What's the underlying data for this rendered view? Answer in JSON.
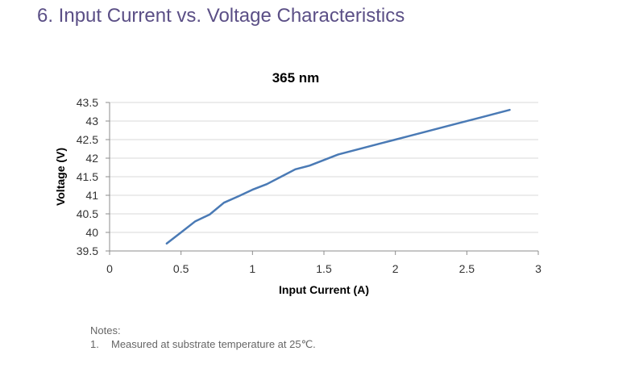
{
  "page": {
    "section_title": "6. Input Current vs. Voltage Characteristics",
    "notes_heading": "Notes:",
    "notes": [
      {
        "number": "1.",
        "text": "Measured at substrate temperature at 25℃."
      }
    ]
  },
  "colors": {
    "title": "#5b4f86",
    "series": "#4a7ab5",
    "grid": "#d9d9d9",
    "axis": "#8c8c8c",
    "notes": "#666666"
  },
  "chart_data": {
    "type": "line",
    "title": "365 nm",
    "xlabel": "Input Current (A)",
    "ylabel": "Voltage (V)",
    "xlim": [
      0,
      3
    ],
    "ylim": [
      39.5,
      43.5
    ],
    "x_ticks": [
      "0",
      "0.5",
      "1",
      "1.5",
      "2",
      "2.5",
      "3"
    ],
    "y_ticks": [
      "39.5",
      "40",
      "40.5",
      "41",
      "41.5",
      "42",
      "42.5",
      "43",
      "43.5"
    ],
    "grid": "horizontal",
    "legend": "none",
    "series": [
      {
        "x": [
          0.4,
          0.5,
          0.6,
          0.7,
          0.8,
          0.9,
          1.0,
          1.1,
          1.2,
          1.3,
          1.4,
          1.5,
          1.6,
          1.7,
          1.8,
          1.9,
          2.0,
          2.2,
          2.4,
          2.6,
          2.8
        ],
        "y": [
          39.7,
          40.0,
          40.3,
          40.48,
          40.8,
          40.97,
          41.15,
          41.3,
          41.5,
          41.7,
          41.8,
          41.95,
          42.1,
          42.2,
          42.3,
          42.4,
          42.5,
          42.7,
          42.9,
          43.1,
          43.3
        ]
      }
    ]
  }
}
